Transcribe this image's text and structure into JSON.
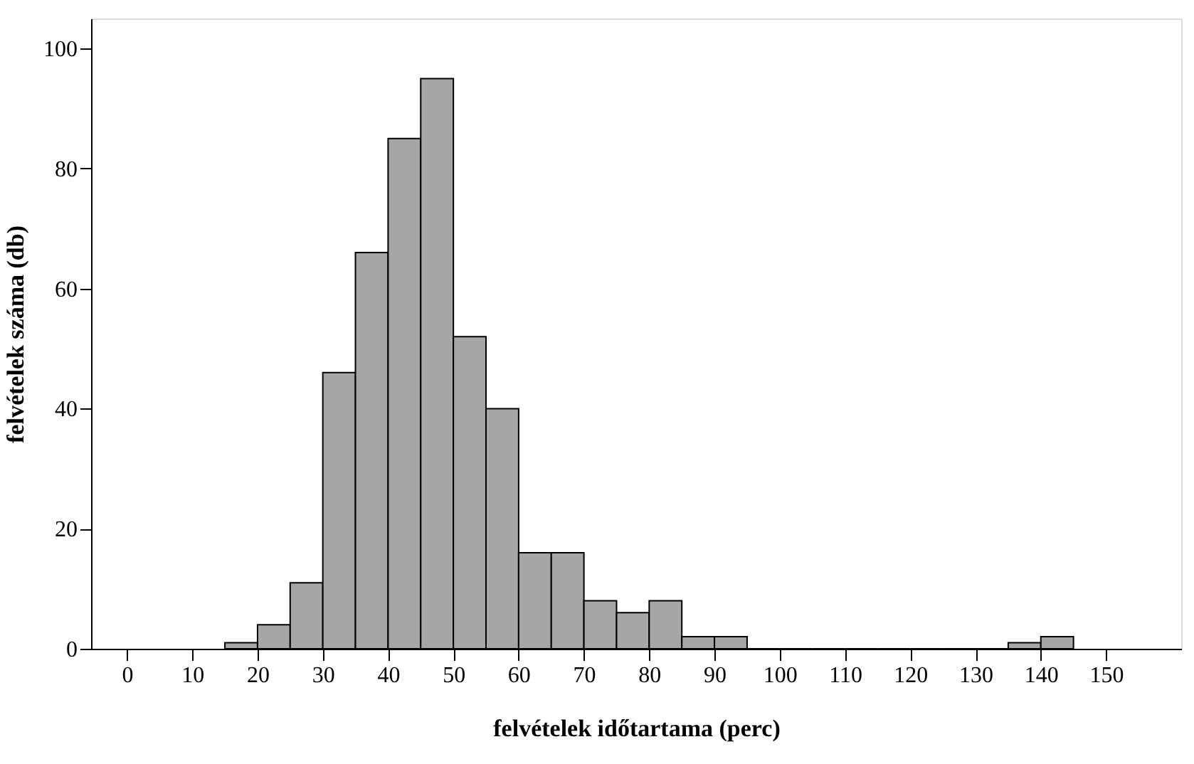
{
  "chart_data": {
    "type": "histogram",
    "xlabel": "felvételek időtartama (perc)",
    "ylabel": "felvételek száma (db)",
    "bins": [
      15,
      20,
      25,
      30,
      35,
      40,
      45,
      50,
      55,
      60,
      65,
      70,
      75,
      80,
      85,
      90,
      95,
      100,
      105,
      110,
      115,
      120,
      125,
      130,
      135,
      140,
      145
    ],
    "values": [
      1,
      4,
      11,
      46,
      66,
      85,
      95,
      52,
      40,
      16,
      16,
      8,
      6,
      8,
      2,
      2,
      0,
      0,
      0,
      0,
      0,
      0,
      0,
      0,
      1,
      2
    ],
    "color": "#a6a6a6",
    "xlim": [
      -5.5,
      161.5
    ],
    "xticks": [
      0,
      10,
      20,
      30,
      40,
      50,
      60,
      70,
      80,
      90,
      100,
      110,
      120,
      130,
      140,
      150
    ],
    "ylim": [
      0,
      105
    ],
    "yticks": [
      0,
      20,
      40,
      60,
      80,
      100
    ],
    "grid": false
  }
}
